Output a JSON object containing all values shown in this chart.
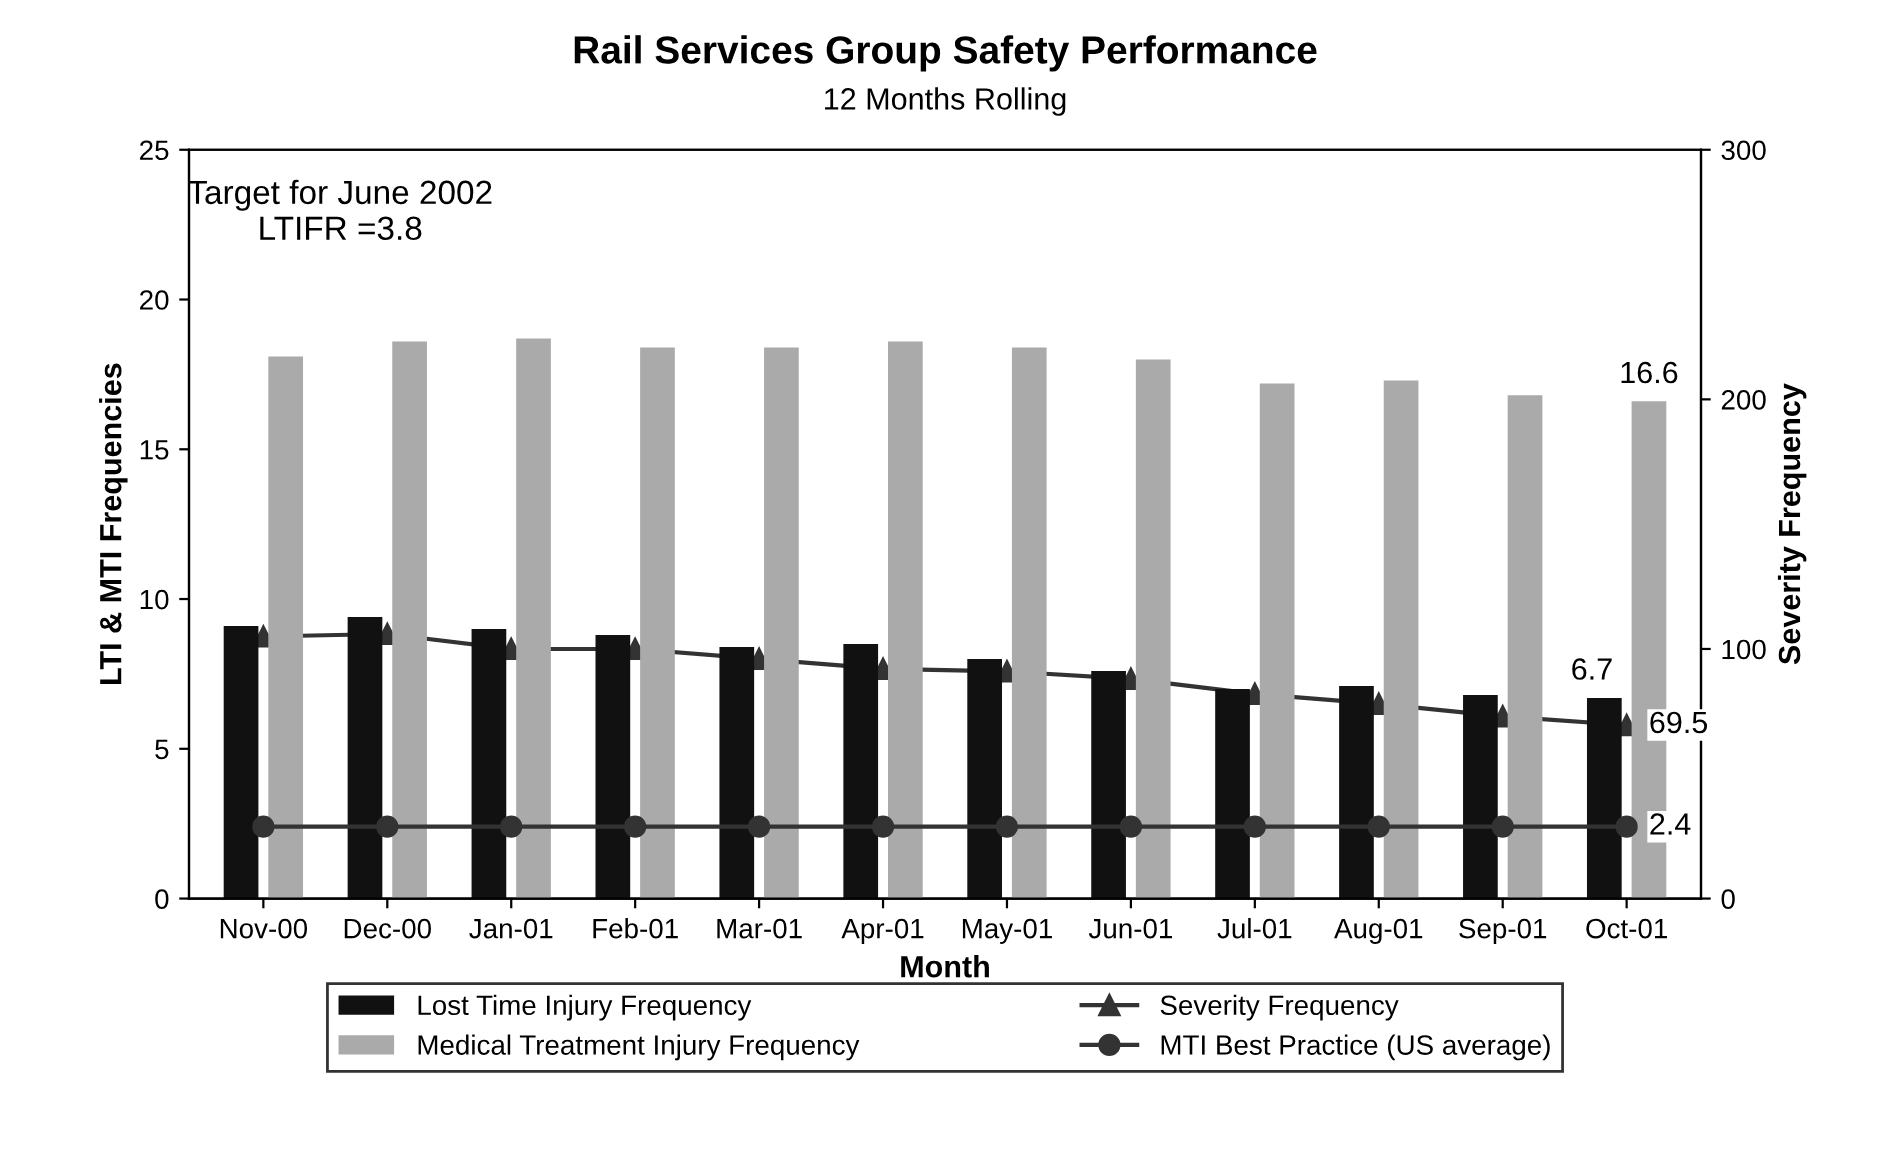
{
  "chart_data": {
    "type": "bar",
    "title": "Rail Services Group Safety Performance",
    "subtitle": "12 Months Rolling",
    "xlabel": "Month",
    "ylabel": "LTI & MTI Frequencies",
    "y2label": "Severity Frequency",
    "annotations": [
      "Target for June 2002\nLTIFR =3.8"
    ],
    "categories": [
      "Nov-00",
      "Dec-00",
      "Jan-01",
      "Feb-01",
      "Mar-01",
      "Apr-01",
      "May-01",
      "Jun-01",
      "Jul-01",
      "Aug-01",
      "Sep-01",
      "Oct-01"
    ],
    "series": [
      {
        "name": "Lost Time Injury Frequency",
        "color": "#111111",
        "values": [
          9.1,
          9.4,
          9.0,
          8.8,
          8.4,
          8.5,
          8.0,
          7.6,
          7.0,
          7.1,
          6.8,
          6.7
        ],
        "value_labels": [
          null,
          null,
          null,
          null,
          null,
          null,
          null,
          null,
          null,
          null,
          null,
          "6.7"
        ]
      },
      {
        "name": "Medical Treatment Injury Frequency",
        "color": "#aaaaaa",
        "values": [
          18.1,
          18.6,
          18.7,
          18.4,
          18.4,
          18.6,
          18.4,
          18.0,
          17.2,
          17.3,
          16.8,
          16.6
        ],
        "value_labels": [
          null,
          null,
          null,
          null,
          null,
          null,
          null,
          null,
          null,
          null,
          null,
          "16.6"
        ]
      },
      {
        "name": "Severity Frequency",
        "type": "line",
        "axis": "y2",
        "color": "#333333",
        "marker": "triangle",
        "values": [
          105,
          106,
          100,
          100,
          96,
          92,
          91,
          88,
          82,
          78,
          73,
          69.5
        ],
        "value_labels": [
          null,
          null,
          null,
          null,
          null,
          null,
          null,
          null,
          null,
          null,
          null,
          "69.5"
        ]
      },
      {
        "name": "MTI Best Practice (US average)",
        "type": "line",
        "color": "#333333",
        "marker": "circle",
        "values": [
          2.4,
          2.4,
          2.4,
          2.4,
          2.4,
          2.4,
          2.4,
          2.4,
          2.4,
          2.4,
          2.4,
          2.4
        ],
        "value_labels": [
          null,
          null,
          null,
          null,
          null,
          null,
          null,
          null,
          null,
          null,
          null,
          "2.4"
        ]
      }
    ],
    "ylim": [
      0,
      25
    ],
    "yticks": [
      0,
      5,
      10,
      15,
      20,
      25
    ],
    "y2lim": [
      0,
      300
    ],
    "y2ticks": [
      0,
      100,
      200,
      300
    ],
    "grid": false,
    "legend": "bottom"
  }
}
